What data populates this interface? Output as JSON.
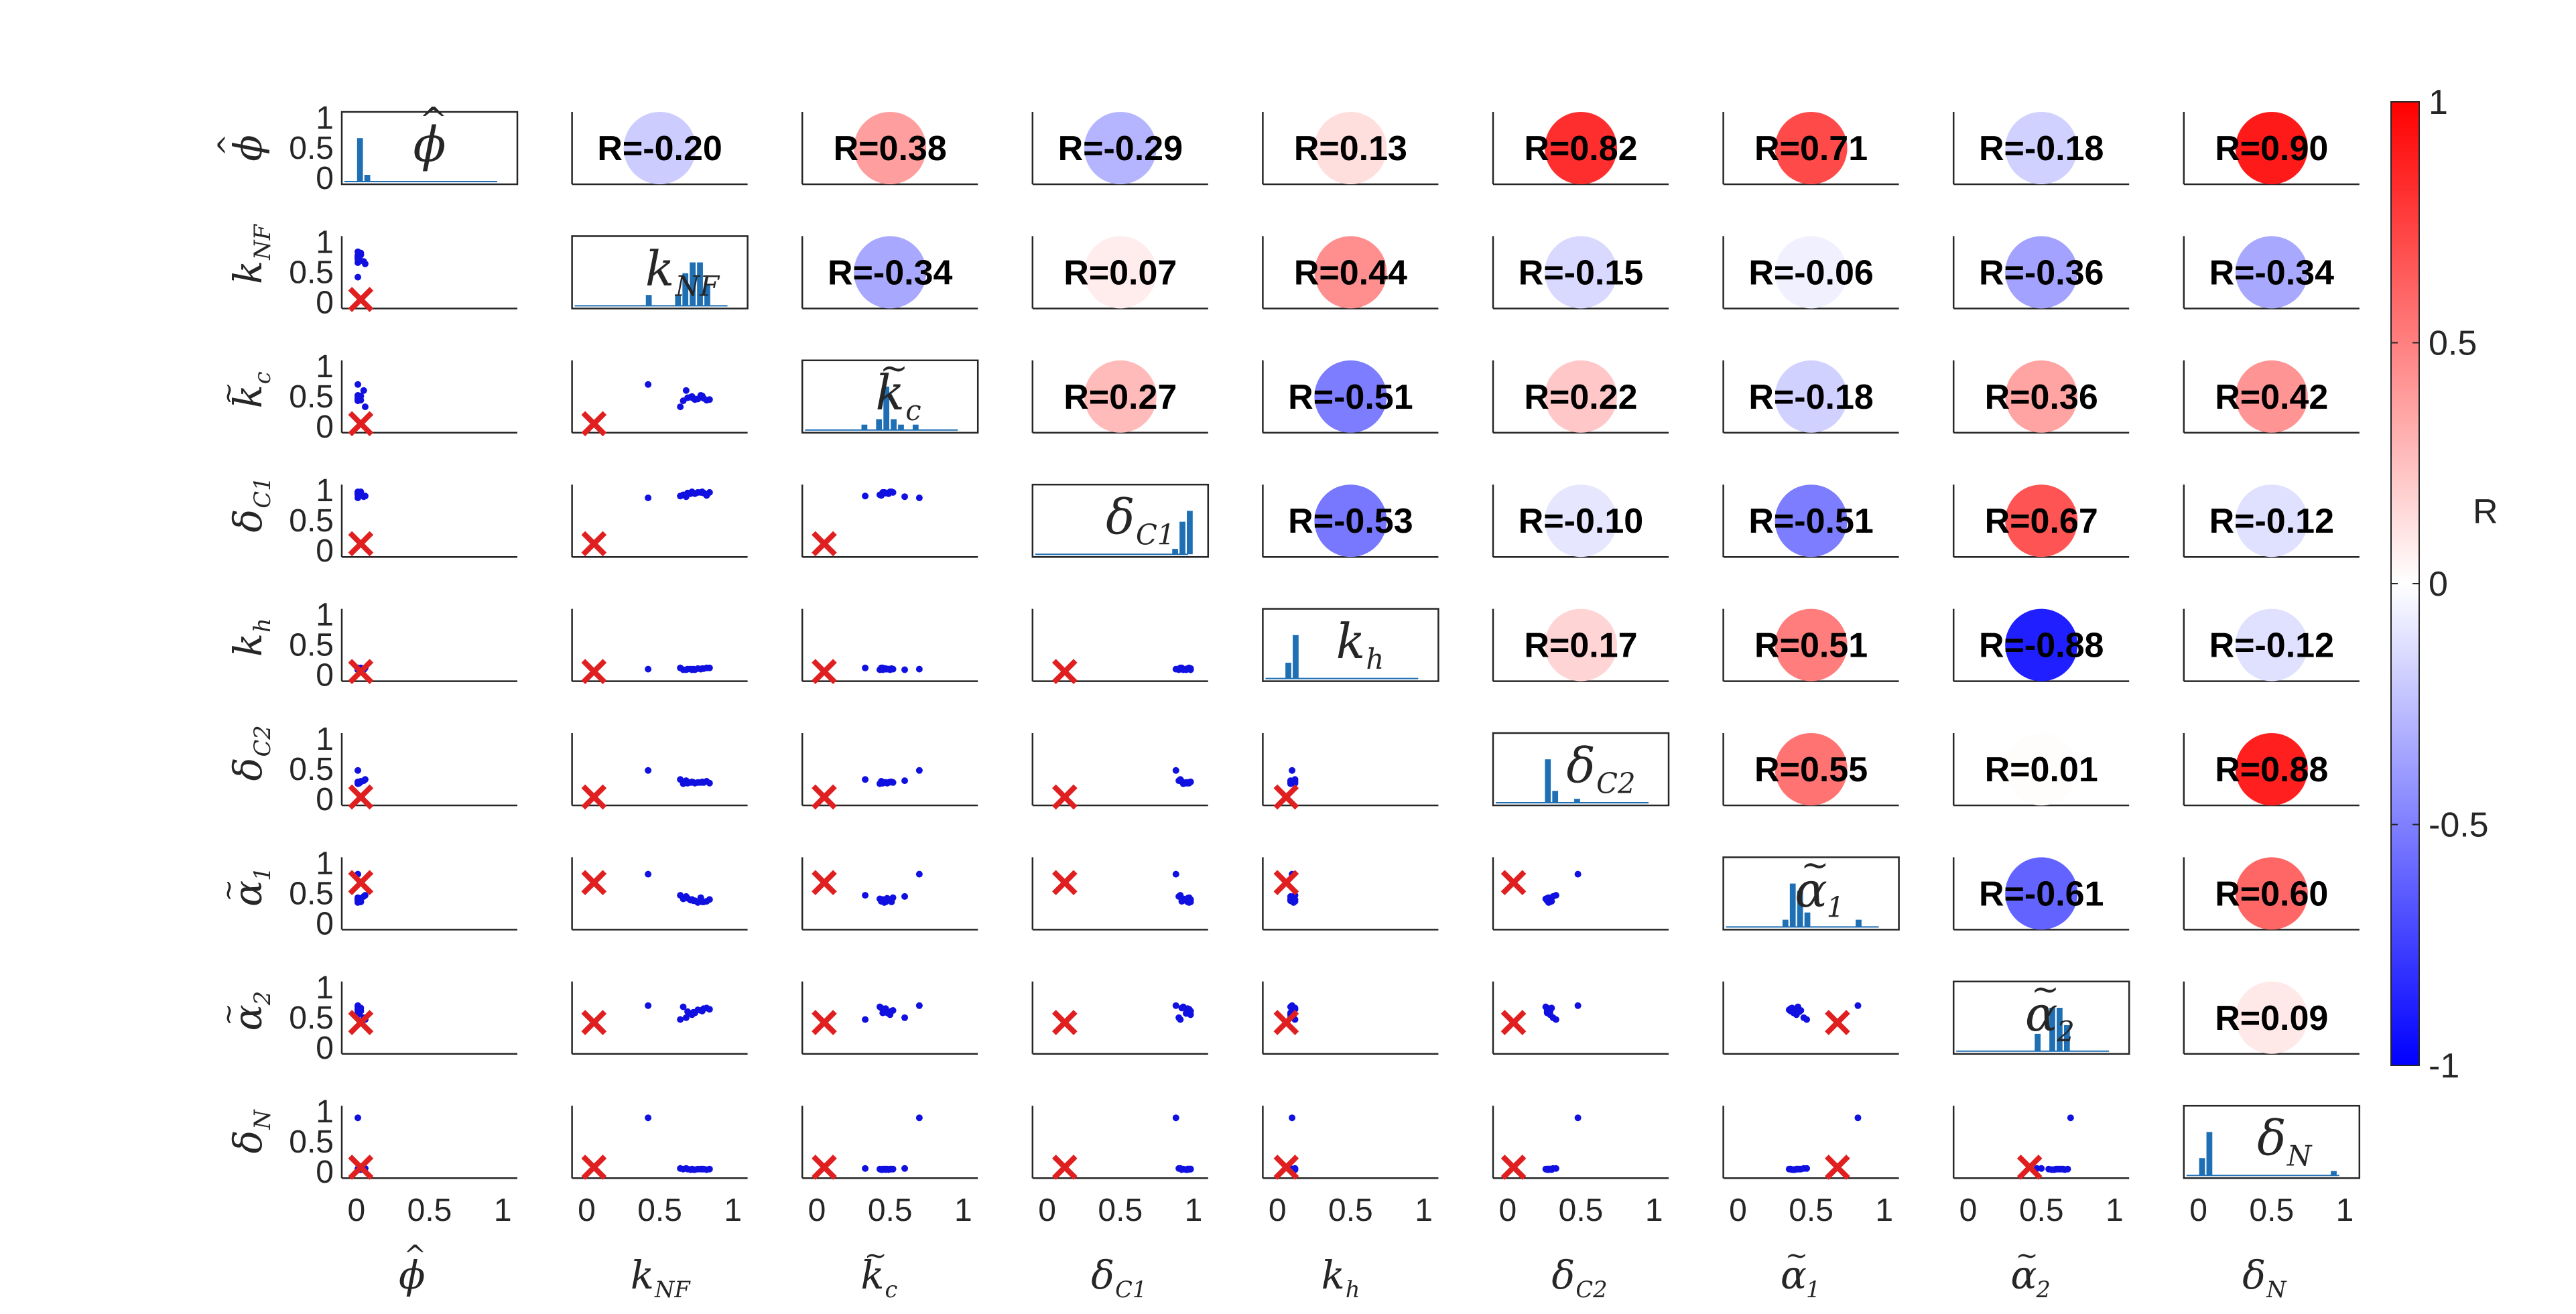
{
  "chart_data": {
    "type": "scatter-matrix",
    "variables": [
      {
        "base": "ϕ",
        "accent": "^",
        "sub": ""
      },
      {
        "base": "k",
        "accent": "",
        "sub": "NF"
      },
      {
        "base": "k",
        "accent": "~",
        "sub": "c"
      },
      {
        "base": "δ",
        "accent": "",
        "sub": "C1"
      },
      {
        "base": "k",
        "accent": "",
        "sub": "h"
      },
      {
        "base": "δ",
        "accent": "",
        "sub": "C2"
      },
      {
        "base": "α",
        "accent": "~",
        "sub": "1"
      },
      {
        "base": "α",
        "accent": "~",
        "sub": "2"
      },
      {
        "base": "δ",
        "accent": "",
        "sub": "N"
      }
    ],
    "correlations": [
      [
        null,
        -0.2,
        0.38,
        -0.29,
        0.13,
        0.82,
        0.71,
        -0.18,
        0.9
      ],
      [
        null,
        null,
        -0.34,
        0.07,
        0.44,
        -0.15,
        -0.06,
        -0.36,
        -0.34
      ],
      [
        null,
        null,
        null,
        0.27,
        -0.51,
        0.22,
        -0.18,
        0.36,
        0.42
      ],
      [
        null,
        null,
        null,
        null,
        -0.53,
        -0.1,
        -0.51,
        0.67,
        -0.12
      ],
      [
        null,
        null,
        null,
        null,
        null,
        0.17,
        0.51,
        -0.88,
        -0.12
      ],
      [
        null,
        null,
        null,
        null,
        null,
        null,
        0.55,
        0.01,
        0.88
      ],
      [
        null,
        null,
        null,
        null,
        null,
        null,
        null,
        -0.61,
        0.6
      ],
      [
        null,
        null,
        null,
        null,
        null,
        null,
        null,
        null,
        0.09
      ],
      [
        null,
        null,
        null,
        null,
        null,
        null,
        null,
        null,
        null
      ]
    ],
    "correlation_labels": [
      [
        null,
        "R=-0.20",
        "R=0.38",
        "R=-0.29",
        "R=0.13",
        "R=0.82",
        "R=0.71",
        "R=-0.18",
        "R=0.90"
      ],
      [
        null,
        null,
        "R=-0.34",
        "R=0.07",
        "R=0.44",
        "R=-0.15",
        "R=-0.06",
        "R=-0.36",
        "R=-0.34"
      ],
      [
        null,
        null,
        null,
        "R=0.27",
        "R=-0.51",
        "R=0.22",
        "R=-0.18",
        "R=0.36",
        "R=0.42"
      ],
      [
        null,
        null,
        null,
        null,
        "R=-0.53",
        "R=-0.10",
        "R=-0.51",
        "R=0.67",
        "R=-0.12"
      ],
      [
        null,
        null,
        null,
        null,
        null,
        "R=0.17",
        "R=0.51",
        "R=-0.88",
        "R=-0.12"
      ],
      [
        null,
        null,
        null,
        null,
        null,
        null,
        "R=0.55",
        "R=0.01",
        "R=0.88"
      ],
      [
        null,
        null,
        null,
        null,
        null,
        null,
        null,
        "R=-0.61",
        "R=0.60"
      ],
      [
        null,
        null,
        null,
        null,
        null,
        null,
        null,
        null,
        "R=0.09"
      ],
      [
        null,
        null,
        null,
        null,
        null,
        null,
        null,
        null,
        null
      ]
    ],
    "samples": [
      [
        0.01,
        0.78,
        0.52,
        0.97,
        0.1,
        0.28,
        0.43,
        0.62,
        0.05
      ],
      [
        0.01,
        0.74,
        0.45,
        0.95,
        0.09,
        0.27,
        0.38,
        0.58,
        0.04
      ],
      [
        0.02,
        0.8,
        0.47,
        0.96,
        0.11,
        0.28,
        0.36,
        0.65,
        0.05
      ],
      [
        0.01,
        0.72,
        0.5,
        0.98,
        0.09,
        0.29,
        0.4,
        0.55,
        0.05
      ],
      [
        0.03,
        0.82,
        0.44,
        0.92,
        0.12,
        0.3,
        0.37,
        0.66,
        0.04
      ],
      [
        0.02,
        0.69,
        0.48,
        0.96,
        0.1,
        0.27,
        0.42,
        0.6,
        0.05
      ],
      [
        0.01,
        0.76,
        0.46,
        0.97,
        0.11,
        0.28,
        0.35,
        0.63,
        0.05
      ],
      [
        0.02,
        0.71,
        0.49,
        0.95,
        0.1,
        0.28,
        0.39,
        0.57,
        0.04
      ],
      [
        0.01,
        0.66,
        0.43,
        0.93,
        0.09,
        0.26,
        0.41,
        0.68,
        0.05
      ],
      [
        0.03,
        0.79,
        0.51,
        0.98,
        0.11,
        0.29,
        0.36,
        0.61,
        0.05
      ],
      [
        0.02,
        0.73,
        0.47,
        0.96,
        0.1,
        0.28,
        0.38,
        0.59,
        0.04
      ],
      [
        0.01,
        0.84,
        0.45,
        0.97,
        0.12,
        0.27,
        0.4,
        0.64,
        0.05
      ],
      [
        0.05,
        0.68,
        0.6,
        0.9,
        0.09,
        0.31,
        0.45,
        0.5,
        0.06
      ],
      [
        0.06,
        0.64,
        0.33,
        0.91,
        0.12,
        0.33,
        0.47,
        0.47,
        0.06
      ],
      [
        0.01,
        0.42,
        0.7,
        0.88,
        0.1,
        0.48,
        0.82,
        0.7,
        0.9
      ]
    ],
    "reference_point": [
      0.03,
      0.05,
      0.05,
      0.12,
      0.06,
      0.04,
      0.68,
      0.42,
      0.08
    ],
    "axis_range": [
      -0.1,
      1.1
    ],
    "ticks": [
      0,
      0.5,
      1
    ],
    "tick_labels": [
      "0",
      "0.5",
      "1"
    ],
    "colorbar": {
      "label": "R",
      "range": [
        -1,
        1
      ],
      "ticks": [
        -1,
        -0.5,
        0,
        0.5,
        1
      ],
      "tick_labels": [
        "-1",
        "-0.5",
        "0",
        "0.5",
        "1"
      ]
    },
    "colors": {
      "scatter": "#1010e0",
      "reference": "#e02020",
      "histogram": "#1f6fb4",
      "positive": "#ff0000",
      "negative": "#0000ff",
      "neutral": "#ffffff"
    }
  }
}
